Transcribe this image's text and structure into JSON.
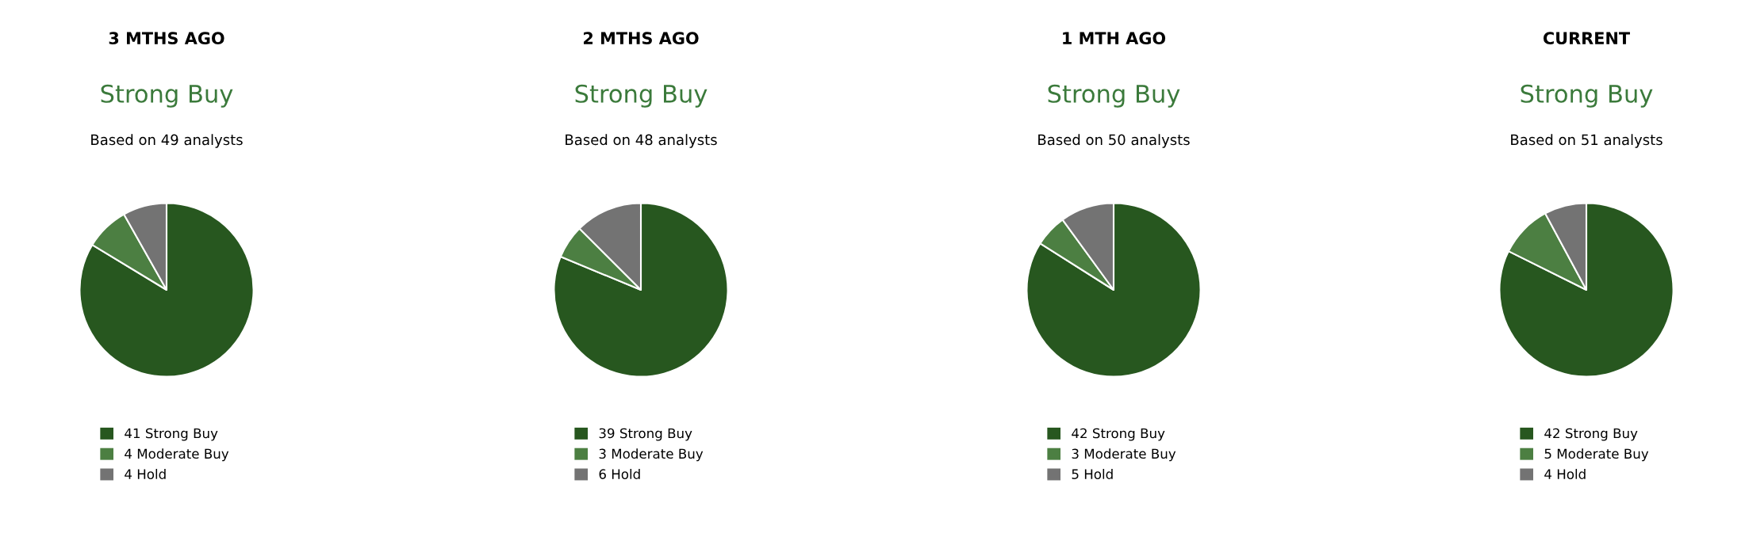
{
  "chart_data": [
    {
      "type": "pie",
      "title": "3 MTHS AGO",
      "subtitle": "Strong Buy",
      "annotations": [
        "Based on 49 analysts"
      ],
      "categories": [
        "41 Strong Buy",
        "4 Moderate Buy",
        "4 Hold"
      ],
      "values": [
        41,
        4,
        4
      ],
      "colors": [
        "#27571f",
        "#4c7f42",
        "#737373"
      ],
      "legend": "bottom"
    },
    {
      "type": "pie",
      "title": "2 MTHS AGO",
      "subtitle": "Strong Buy",
      "annotations": [
        "Based on 48 analysts"
      ],
      "categories": [
        "39 Strong Buy",
        "3 Moderate Buy",
        "6 Hold"
      ],
      "values": [
        39,
        3,
        6
      ],
      "colors": [
        "#27571f",
        "#4c7f42",
        "#737373"
      ],
      "legend": "bottom"
    },
    {
      "type": "pie",
      "title": "1 MTH AGO",
      "subtitle": "Strong Buy",
      "annotations": [
        "Based on 50 analysts"
      ],
      "categories": [
        "42 Strong Buy",
        "3 Moderate Buy",
        "5 Hold"
      ],
      "values": [
        42,
        3,
        5
      ],
      "colors": [
        "#27571f",
        "#4c7f42",
        "#737373"
      ],
      "legend": "bottom"
    },
    {
      "type": "pie",
      "title": "CURRENT",
      "subtitle": "Strong Buy",
      "annotations": [
        "Based on 51 analysts"
      ],
      "categories": [
        "42 Strong Buy",
        "5 Moderate Buy",
        "4 Hold"
      ],
      "values": [
        42,
        5,
        4
      ],
      "colors": [
        "#27571f",
        "#4c7f42",
        "#737373"
      ],
      "legend": "bottom"
    }
  ]
}
